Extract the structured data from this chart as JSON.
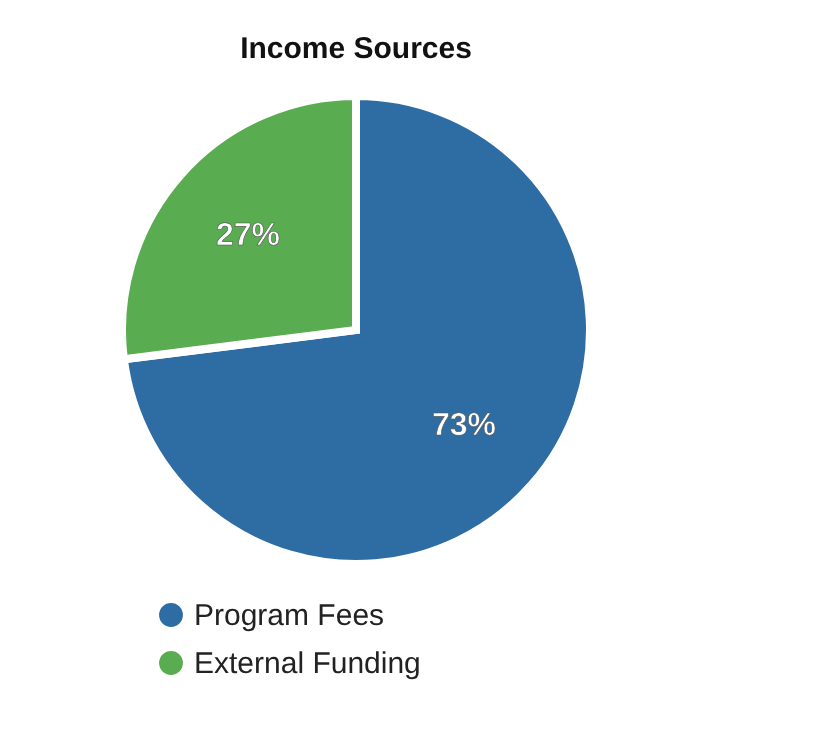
{
  "chart_data": {
    "type": "pie",
    "title": "Income Sources",
    "categories": [
      "Program Fees",
      "External Funding"
    ],
    "values": [
      73,
      27
    ],
    "colors": [
      "#2e6ca4",
      "#5aac51"
    ],
    "value_labels": [
      "73%",
      "27%"
    ],
    "legend": "bottom left"
  }
}
